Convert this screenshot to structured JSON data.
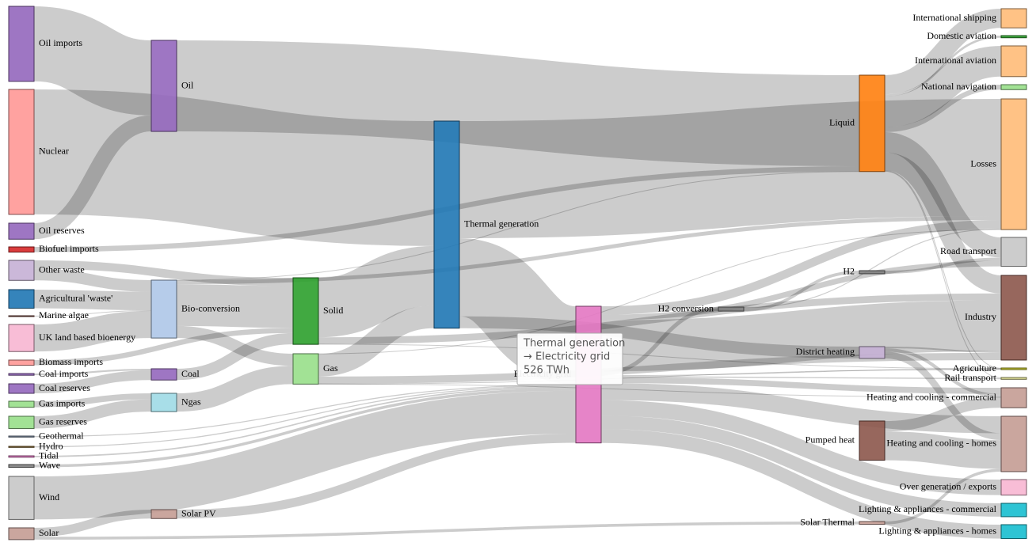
{
  "chart_data": {
    "type": "sankey",
    "nodes": [
      {
        "name": "Agricultural 'waste'",
        "color": "#1f77b4"
      },
      {
        "name": "Bio-conversion",
        "color": "#aec7e8"
      },
      {
        "name": "Liquid",
        "color": "#ff7f0e"
      },
      {
        "name": "Losses",
        "color": "#ffbb78"
      },
      {
        "name": "Solid",
        "color": "#2ca02c"
      },
      {
        "name": "Gas",
        "color": "#98df8a"
      },
      {
        "name": "Biofuel imports",
        "color": "#d62728"
      },
      {
        "name": "Biomass imports",
        "color": "#ff9896"
      },
      {
        "name": "Coal imports",
        "color": "#9467bd"
      },
      {
        "name": "Coal",
        "color": "#9467bd"
      },
      {
        "name": "Coal reserves",
        "color": "#9467bd"
      },
      {
        "name": "District heating",
        "color": "#c5b0d5"
      },
      {
        "name": "Industry",
        "color": "#8c564b"
      },
      {
        "name": "Heating and cooling - commercial",
        "color": "#c49c94"
      },
      {
        "name": "Heating and cooling - homes",
        "color": "#c49c94"
      },
      {
        "name": "Electricity grid",
        "color": "#e377c2"
      },
      {
        "name": "Over generation / exports",
        "color": "#f7b6d2"
      },
      {
        "name": "H2 conversion",
        "color": "#7f7f7f"
      },
      {
        "name": "Road transport",
        "color": "#c7c7c7"
      },
      {
        "name": "Agriculture",
        "color": "#bcbd22"
      },
      {
        "name": "Rail transport",
        "color": "#dbdb8d"
      },
      {
        "name": "Lighting & appliances - commercial",
        "color": "#17becf"
      },
      {
        "name": "Lighting & appliances - homes",
        "color": "#17becf"
      },
      {
        "name": "Gas imports",
        "color": "#98df8a"
      },
      {
        "name": "Ngas",
        "color": "#9edae5"
      },
      {
        "name": "Gas reserves",
        "color": "#98df8a"
      },
      {
        "name": "Thermal generation",
        "color": "#1f77b4"
      },
      {
        "name": "Geothermal",
        "color": "#7f8fa6"
      },
      {
        "name": "H2",
        "color": "#7f7f7f"
      },
      {
        "name": "Hydro",
        "color": "#8c6d31"
      },
      {
        "name": "International shipping",
        "color": "#ffbb78"
      },
      {
        "name": "Domestic aviation",
        "color": "#2ca02c"
      },
      {
        "name": "International aviation",
        "color": "#ffbb78"
      },
      {
        "name": "National navigation",
        "color": "#98df8a"
      },
      {
        "name": "Marine algae",
        "color": "#8c564b"
      },
      {
        "name": "Nuclear",
        "color": "#ff9896"
      },
      {
        "name": "Oil imports",
        "color": "#9467bd"
      },
      {
        "name": "Oil",
        "color": "#9467bd"
      },
      {
        "name": "Oil reserves",
        "color": "#9467bd"
      },
      {
        "name": "Other waste",
        "color": "#c5b0d5"
      },
      {
        "name": "Pumped heat",
        "color": "#8c564b"
      },
      {
        "name": "Solar PV",
        "color": "#c49c94"
      },
      {
        "name": "Solar Thermal",
        "color": "#c49c94"
      },
      {
        "name": "Solar",
        "color": "#c49c94"
      },
      {
        "name": "Tidal",
        "color": "#e377c2"
      },
      {
        "name": "UK land based bioenergy",
        "color": "#f7b6d2"
      },
      {
        "name": "Wave",
        "color": "#7f7f7f"
      },
      {
        "name": "Wind",
        "color": "#c7c7c7"
      }
    ],
    "links": [
      {
        "source": 0,
        "target": 1,
        "value": 124.729
      },
      {
        "source": 1,
        "target": 2,
        "value": 0.597
      },
      {
        "source": 1,
        "target": 3,
        "value": 26.862
      },
      {
        "source": 1,
        "target": 4,
        "value": 280.322
      },
      {
        "source": 1,
        "target": 5,
        "value": 81.144
      },
      {
        "source": 6,
        "target": 2,
        "value": 35
      },
      {
        "source": 7,
        "target": 4,
        "value": 35
      },
      {
        "source": 8,
        "target": 9,
        "value": 11.606
      },
      {
        "source": 10,
        "target": 9,
        "value": 63.965
      },
      {
        "source": 9,
        "target": 4,
        "value": 75.571
      },
      {
        "source": 11,
        "target": 12,
        "value": 10.639
      },
      {
        "source": 11,
        "target": 13,
        "value": 22.505
      },
      {
        "source": 11,
        "target": 14,
        "value": 46.184
      },
      {
        "source": 15,
        "target": 16,
        "value": 104.453
      },
      {
        "source": 15,
        "target": 14,
        "value": 113.726
      },
      {
        "source": 15,
        "target": 17,
        "value": 27.14
      },
      {
        "source": 15,
        "target": 12,
        "value": 342.165
      },
      {
        "source": 15,
        "target": 18,
        "value": 37.797
      },
      {
        "source": 15,
        "target": 19,
        "value": 4.412
      },
      {
        "source": 15,
        "target": 13,
        "value": 40.858
      },
      {
        "source": 15,
        "target": 3,
        "value": 56.691
      },
      {
        "source": 15,
        "target": 20,
        "value": 7.863
      },
      {
        "source": 15,
        "target": 21,
        "value": 90.008
      },
      {
        "source": 15,
        "target": 22,
        "value": 93.494
      },
      {
        "source": 23,
        "target": 24,
        "value": 40.719
      },
      {
        "source": 25,
        "target": 24,
        "value": 82.233
      },
      {
        "source": 5,
        "target": 13,
        "value": 0.129
      },
      {
        "source": 5,
        "target": 3,
        "value": 1.401
      },
      {
        "source": 5,
        "target": 26,
        "value": 151.891
      },
      {
        "source": 5,
        "target": 19,
        "value": 2.096
      },
      {
        "source": 5,
        "target": 12,
        "value": 48.58
      },
      {
        "source": 27,
        "target": 15,
        "value": 7.013
      },
      {
        "source": 17,
        "target": 28,
        "value": 20.897
      },
      {
        "source": 17,
        "target": 3,
        "value": 6.242
      },
      {
        "source": 28,
        "target": 18,
        "value": 20.897
      },
      {
        "source": 29,
        "target": 15,
        "value": 6.995
      },
      {
        "source": 2,
        "target": 12,
        "value": 121.066
      },
      {
        "source": 2,
        "target": 30,
        "value": 128.69
      },
      {
        "source": 2,
        "target": 18,
        "value": 135.835
      },
      {
        "source": 2,
        "target": 31,
        "value": 14.458
      },
      {
        "source": 2,
        "target": 32,
        "value": 206.267
      },
      {
        "source": 2,
        "target": 19,
        "value": 3.64
      },
      {
        "source": 2,
        "target": 33,
        "value": 33.218
      },
      {
        "source": 2,
        "target": 20,
        "value": 4.413
      },
      {
        "source": 34,
        "target": 1,
        "value": 4.375
      },
      {
        "source": 24,
        "target": 5,
        "value": 122.952
      },
      {
        "source": 35,
        "target": 26,
        "value": 839.978
      },
      {
        "source": 36,
        "target": 37,
        "value": 504.287
      },
      {
        "source": 38,
        "target": 37,
        "value": 107.703
      },
      {
        "source": 37,
        "target": 2,
        "value": 611.99
      },
      {
        "source": 39,
        "target": 4,
        "value": 56.587
      },
      {
        "source": 39,
        "target": 1,
        "value": 77.81
      },
      {
        "source": 40,
        "target": 14,
        "value": 193.026
      },
      {
        "source": 40,
        "target": 13,
        "value": 70.672
      },
      {
        "source": 41,
        "target": 15,
        "value": 59.901
      },
      {
        "source": 42,
        "target": 14,
        "value": 19.263
      },
      {
        "source": 43,
        "target": 42,
        "value": 19.263
      },
      {
        "source": 43,
        "target": 41,
        "value": 59.901
      },
      {
        "source": 4,
        "target": 19,
        "value": 0.882
      },
      {
        "source": 4,
        "target": 26,
        "value": 400.12
      },
      {
        "source": 4,
        "target": 12,
        "value": 46.477
      },
      {
        "source": 26,
        "target": 15,
        "value": 525.531
      },
      {
        "source": 26,
        "target": 3,
        "value": 787.129
      },
      {
        "source": 26,
        "target": 11,
        "value": 79.329
      },
      {
        "source": 44,
        "target": 15,
        "value": 9.452
      },
      {
        "source": 45,
        "target": 1,
        "value": 182.01
      },
      {
        "source": 46,
        "target": 15,
        "value": 19.013
      },
      {
        "source": 47,
        "target": 15,
        "value": 289.366
      }
    ],
    "tooltip": [
      "Thermal generation",
      "→ Electricity grid",
      "526 TWh"
    ]
  }
}
